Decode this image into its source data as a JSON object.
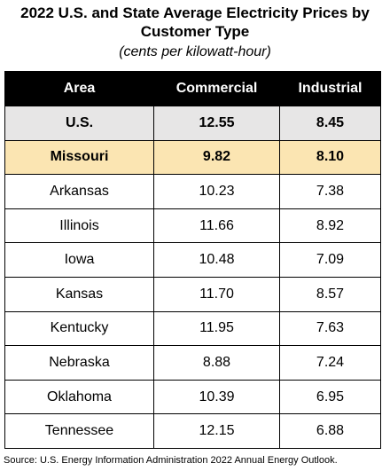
{
  "title": "2022 U.S. and State Average Electricity Prices by Customer Type",
  "subtitle": "(cents per kilowatt-hour)",
  "table": {
    "headers": [
      "Area",
      "Commercial",
      "Industrial"
    ],
    "rows": [
      {
        "area": "U.S.",
        "commercial": "12.55",
        "industrial": "8.45",
        "highlight": "gray"
      },
      {
        "area": "Missouri",
        "commercial": "9.82",
        "industrial": "8.10",
        "highlight": "yellow"
      },
      {
        "area": "Arkansas",
        "commercial": "10.23",
        "industrial": "7.38"
      },
      {
        "area": "Illinois",
        "commercial": "11.66",
        "industrial": "8.92"
      },
      {
        "area": "Iowa",
        "commercial": "10.48",
        "industrial": "7.09"
      },
      {
        "area": "Kansas",
        "commercial": "11.70",
        "industrial": "8.57"
      },
      {
        "area": "Kentucky",
        "commercial": "11.95",
        "industrial": "7.63"
      },
      {
        "area": "Nebraska",
        "commercial": "8.88",
        "industrial": "7.24"
      },
      {
        "area": "Oklahoma",
        "commercial": "10.39",
        "industrial": "6.95"
      },
      {
        "area": "Tennessee",
        "commercial": "12.15",
        "industrial": "6.88"
      }
    ]
  },
  "source": "Source: U.S. Energy Information Administration 2022 Annual Energy Outlook.",
  "colors": {
    "header_bg": "#000000",
    "us_row_bg": "#e7e6e6",
    "missouri_row_bg": "#fbe5b2"
  }
}
